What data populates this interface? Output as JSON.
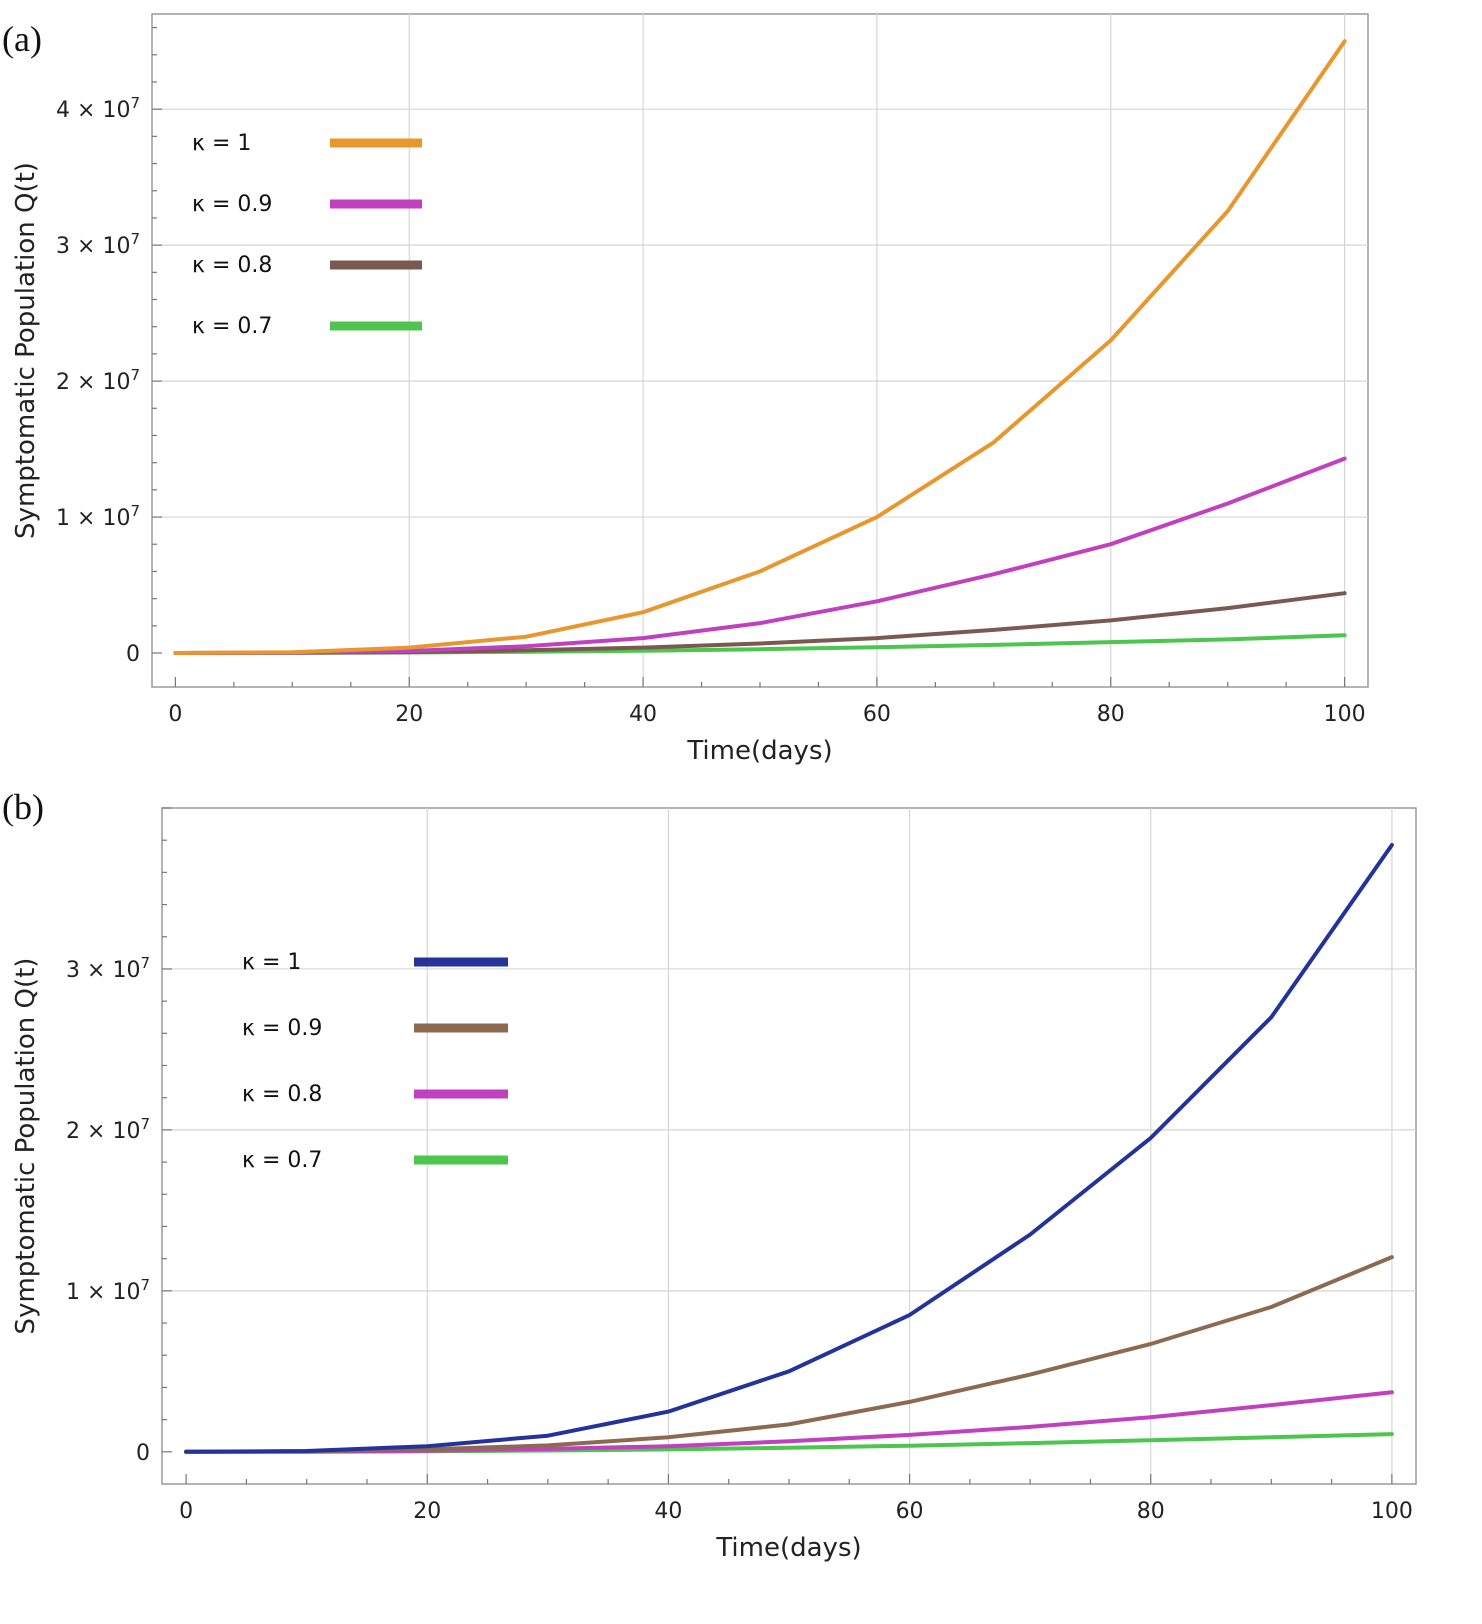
{
  "chart_data": [
    {
      "panel": "(a)",
      "type": "line",
      "xlabel": "Time(days)",
      "ylabel": "Symptomatic Population Q(t)",
      "xlim": [
        -2,
        102
      ],
      "ylim": [
        -2500000,
        47000000
      ],
      "xticks": [
        0,
        20,
        40,
        60,
        80,
        100
      ],
      "yticks": [
        0,
        10000000,
        20000000,
        30000000,
        40000000
      ],
      "ytick_mantissa": [
        "0",
        "1",
        "2",
        "3",
        "4"
      ],
      "ytick_base": "× 10",
      "ytick_exp": "7",
      "x": [
        0,
        10,
        20,
        30,
        40,
        50,
        60,
        70,
        80,
        90,
        100
      ],
      "series": [
        {
          "name": "κ = 1",
          "color": "#E8962E",
          "values": [
            0,
            50000,
            400000,
            1200000,
            3000000,
            6000000,
            10000000,
            15500000,
            23000000,
            32500000,
            45000000
          ]
        },
        {
          "name": "κ = 0.9",
          "color": "#C040C0",
          "values": [
            0,
            30000,
            150000,
            500000,
            1100000,
            2200000,
            3800000,
            5800000,
            8000000,
            11000000,
            14300000
          ]
        },
        {
          "name": "κ = 0.8",
          "color": "#7A5A50",
          "values": [
            0,
            15000,
            70000,
            200000,
            400000,
            700000,
            1100000,
            1700000,
            2400000,
            3300000,
            4400000
          ]
        },
        {
          "name": "κ = 0.7",
          "color": "#4CC64C",
          "values": [
            0,
            8000,
            40000,
            90000,
            170000,
            280000,
            420000,
            600000,
            800000,
            1000000,
            1300000
          ]
        }
      ]
    },
    {
      "panel": "(b)",
      "type": "line",
      "xlabel": "Time(days)",
      "ylabel": "Symptomatic Population Q(t)",
      "xlim": [
        -2,
        102
      ],
      "ylim": [
        -2000000,
        40000000
      ],
      "xticks": [
        0,
        20,
        40,
        60,
        80,
        100
      ],
      "yticks": [
        0,
        10000000,
        20000000,
        30000000
      ],
      "ytick_mantissa": [
        "0",
        "1",
        "2",
        "3"
      ],
      "ytick_base": "× 10",
      "ytick_exp": "7",
      "x": [
        0,
        10,
        20,
        30,
        40,
        50,
        60,
        70,
        80,
        90,
        100
      ],
      "series": [
        {
          "name": "κ = 1",
          "color": "#24339A",
          "values": [
            0,
            50000,
            350000,
            1000000,
            2500000,
            5000000,
            8500000,
            13500000,
            19500000,
            27000000,
            37700000
          ]
        },
        {
          "name": "κ = 0.9",
          "color": "#8C6A52",
          "values": [
            0,
            25000,
            150000,
            400000,
            900000,
            1700000,
            3100000,
            4800000,
            6700000,
            9000000,
            12100000
          ]
        },
        {
          "name": "κ = 0.8",
          "color": "#C040C0",
          "values": [
            0,
            12000,
            60000,
            180000,
            350000,
            650000,
            1050000,
            1550000,
            2150000,
            2900000,
            3700000
          ]
        },
        {
          "name": "κ = 0.7",
          "color": "#4CC64C",
          "values": [
            0,
            6000,
            30000,
            80000,
            150000,
            250000,
            380000,
            540000,
            720000,
            900000,
            1100000
          ]
        }
      ]
    }
  ]
}
